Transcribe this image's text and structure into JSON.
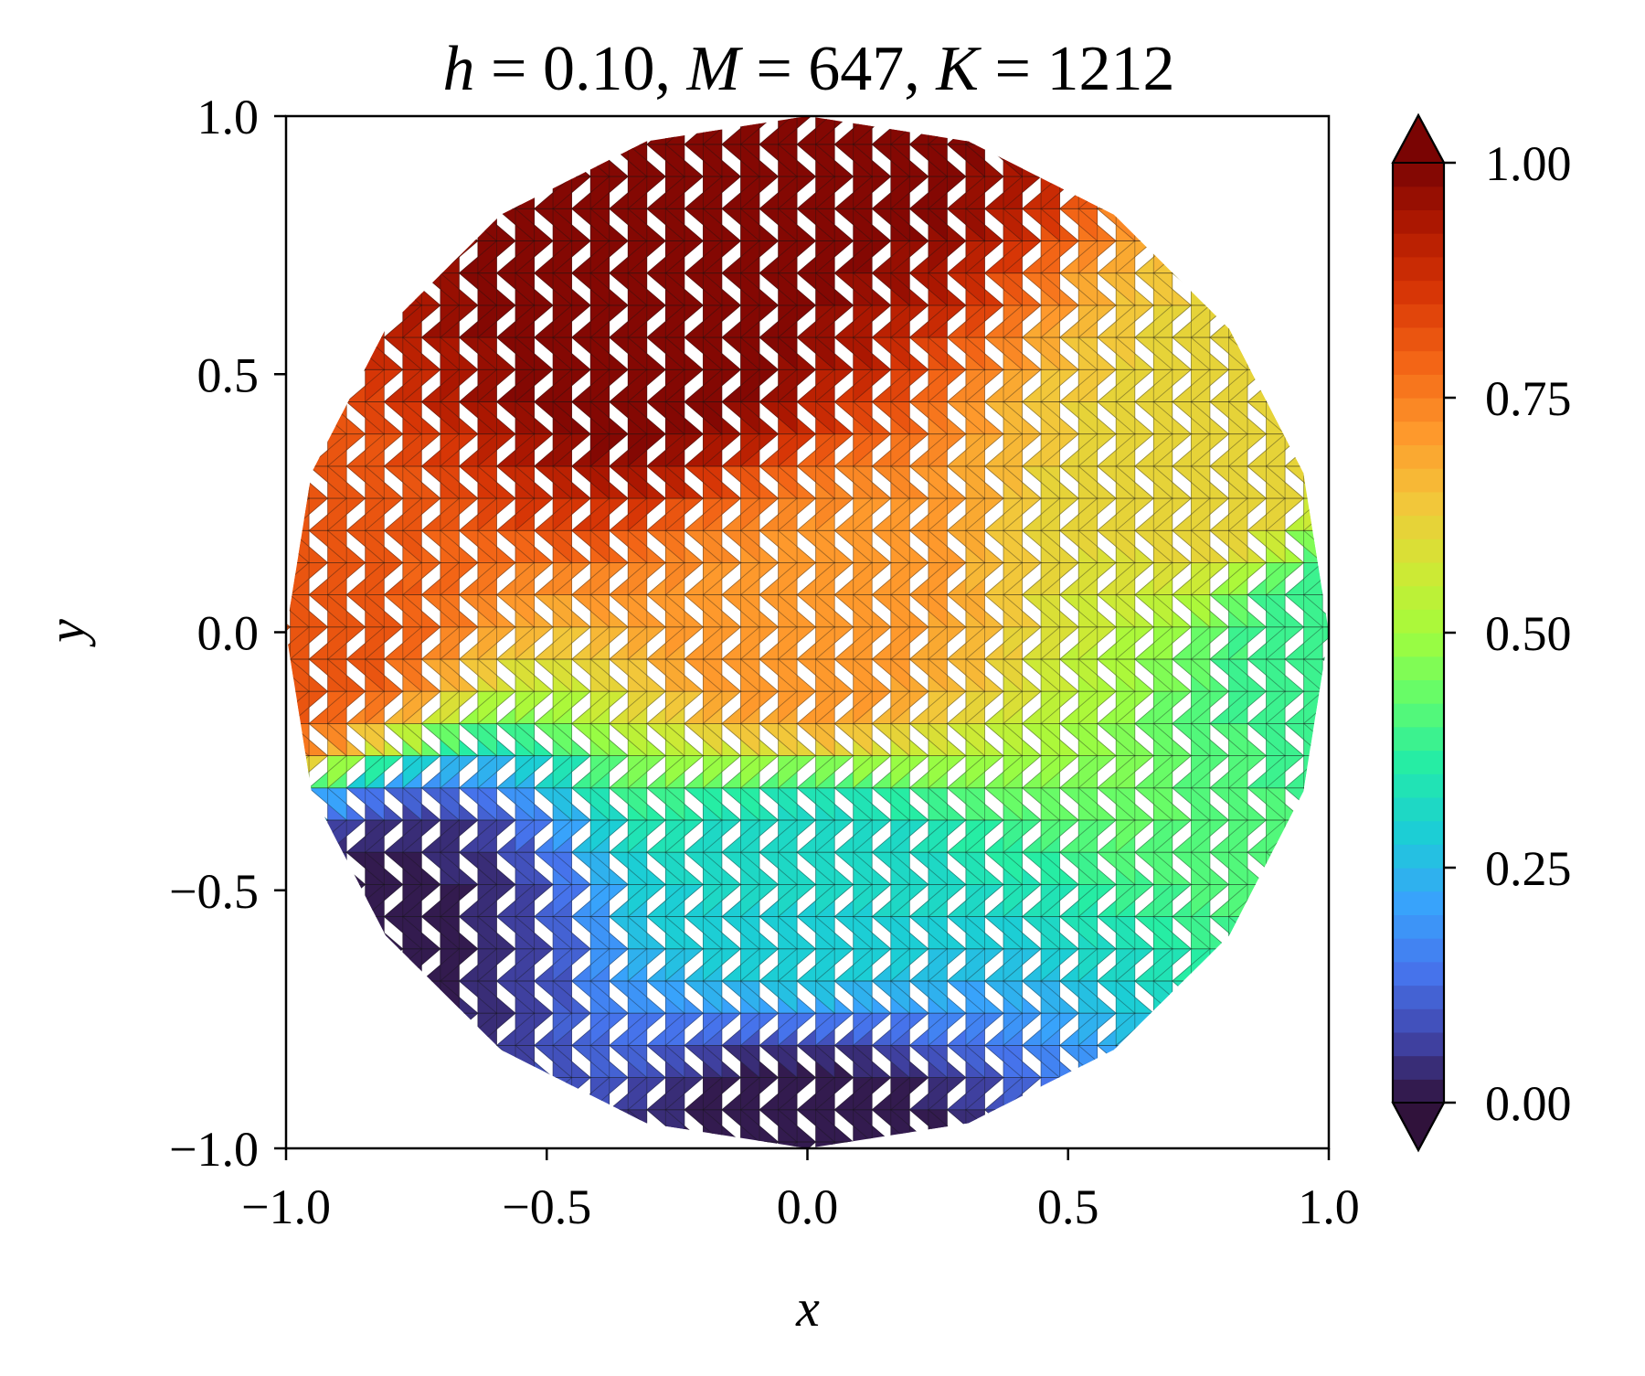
{
  "chart_data": {
    "type": "heatmap",
    "title": "h = 0.10, M = 647, K = 1212",
    "title_parts": {
      "h_sym": "h",
      "h_val": "0.10",
      "M_sym": "M",
      "M_val": "647",
      "K_sym": "K",
      "K_val": "1212"
    },
    "xlabel": "x",
    "ylabel": "y",
    "xlim": [
      -1.0,
      1.0
    ],
    "ylim": [
      -1.0,
      1.0
    ],
    "x_ticks": [
      "−1.0",
      "−0.5",
      "0.0",
      "0.5",
      "1.0"
    ],
    "y_ticks": [
      "−1.0",
      "−0.5",
      "0.0",
      "0.5",
      "1.0"
    ],
    "x_tick_values": [
      -1.0,
      -0.5,
      0.0,
      0.5,
      1.0
    ],
    "y_tick_values": [
      -1.0,
      -0.5,
      0.0,
      0.5,
      1.0
    ],
    "domain": "unit disk",
    "field_min": 0.0,
    "field_max": 1.0,
    "field_description_points": [
      {
        "x": 0.0,
        "y": 1.0,
        "value": 1.0
      },
      {
        "x": -0.3,
        "y": 0.6,
        "value": 1.0
      },
      {
        "x": -1.0,
        "y": 0.0,
        "value": 0.82
      },
      {
        "x": 0.0,
        "y": 0.0,
        "value": 0.72
      },
      {
        "x": 0.8,
        "y": 0.3,
        "value": 0.62
      },
      {
        "x": 1.0,
        "y": 0.0,
        "value": 0.38
      },
      {
        "x": 0.0,
        "y": -0.5,
        "value": 0.3
      },
      {
        "x": -0.8,
        "y": -0.55,
        "value": 0.02
      },
      {
        "x": 0.0,
        "y": -1.0,
        "value": 0.0
      }
    ],
    "colorbar": {
      "colormap": "turbo",
      "levels": 40,
      "ticks": [
        "0.00",
        "0.25",
        "0.50",
        "0.75",
        "1.00"
      ],
      "tick_values": [
        0.0,
        0.25,
        0.5,
        0.75,
        1.0
      ],
      "extend": "both"
    },
    "mesh": "triangular",
    "grid": false
  }
}
